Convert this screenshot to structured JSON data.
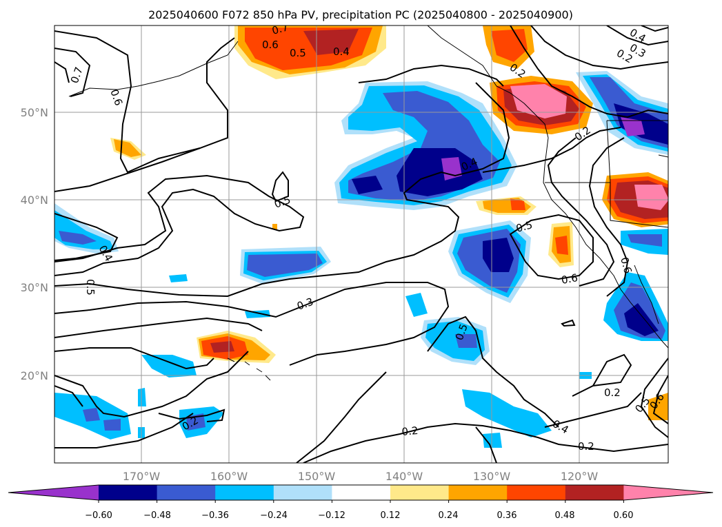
{
  "title": "2025040600 F072 850 hPa PV, precipitation PC (2025040800 - 2025040900)",
  "lat_labels": [
    "50°N",
    "40°N",
    "30°N",
    "20°N"
  ],
  "lon_labels": [
    "170°W",
    "160°W",
    "150°W",
    "140°W",
    "130°W",
    "120°W"
  ],
  "colorbar": {
    "ticks": [
      "−0.60",
      "−0.48",
      "−0.36",
      "−0.24",
      "−0.12",
      "0.12",
      "0.24",
      "0.36",
      "0.48",
      "0.60"
    ],
    "colors": [
      "#9932cc",
      "#00008b",
      "#3a5bd1",
      "#00bfff",
      "#b0e0fa",
      "#ffffff",
      "#ffe98a",
      "#ffa500",
      "#ff4500",
      "#b22222",
      "#ff82ab"
    ]
  },
  "contour_labels": [
    "0.7",
    "0.6",
    "0.5",
    "0.4",
    "0.7",
    "0.6",
    "0.4",
    "0.3",
    "0.2",
    "0.2",
    "0.2",
    "0.4",
    "0.5",
    "0.5",
    "0.6",
    "0.4",
    "0.5",
    "0.3",
    "0.5",
    "0.6",
    "0.2",
    "0.2",
    "0.4",
    "0.2",
    "0.2",
    "0.5",
    "0.6"
  ]
}
